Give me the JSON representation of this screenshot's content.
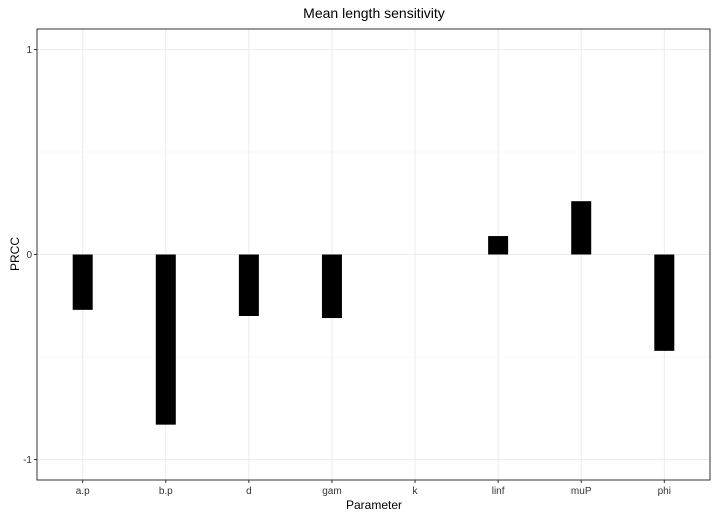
{
  "chart_data": {
    "type": "bar",
    "title": "Mean length sensitivity",
    "xlabel": "Parameter",
    "ylabel": "PRCC",
    "categories": [
      "a.p",
      "b.p",
      "d",
      "gam",
      "k",
      "linf",
      "muP",
      "phi"
    ],
    "values": [
      -0.27,
      -0.83,
      -0.3,
      -0.31,
      0,
      0.09,
      0.26,
      -0.47
    ],
    "ylim": [
      -1.1,
      1.1
    ],
    "yticks": [
      "-1",
      "0",
      "1"
    ],
    "grid": true,
    "bar_color": "#000000",
    "grid_color": "#ebebeb",
    "panel_border_color": "#333333"
  }
}
